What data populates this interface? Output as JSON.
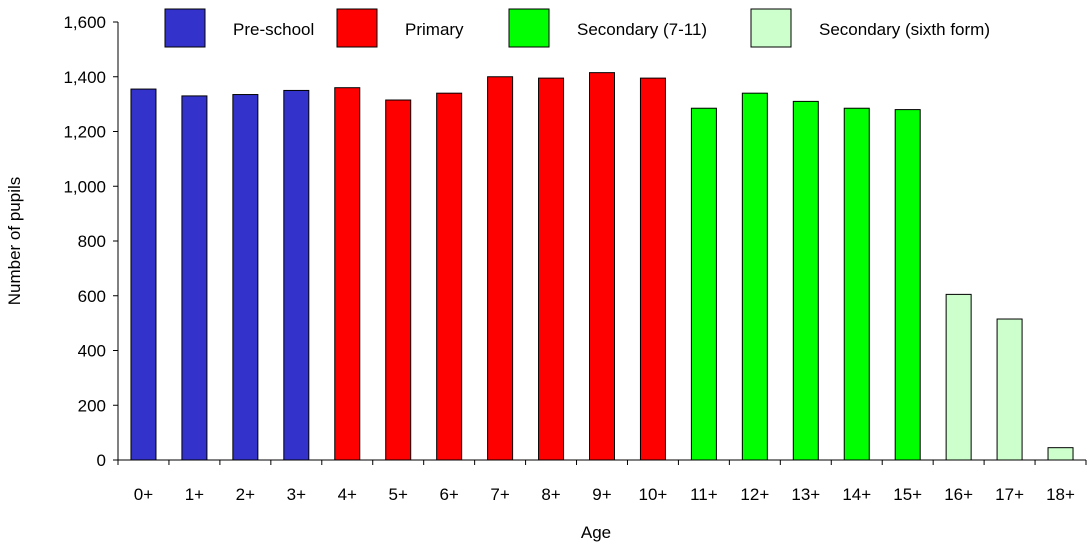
{
  "chart_data": {
    "type": "bar",
    "title": "",
    "xlabel": "Age",
    "ylabel": "Number of pupils",
    "ylim": [
      0,
      1600
    ],
    "yticks": [
      0,
      200,
      400,
      600,
      800,
      1000,
      1200,
      1400,
      1600
    ],
    "ytick_labels": [
      "0",
      "200",
      "400",
      "600",
      "800",
      "1,000",
      "1,200",
      "1,400",
      "1,600"
    ],
    "grid": false,
    "legend_position": "top",
    "categories": [
      "0+",
      "1+",
      "2+",
      "3+",
      "4+",
      "5+",
      "6+",
      "7+",
      "8+",
      "9+",
      "10+",
      "11+",
      "12+",
      "13+",
      "14+",
      "15+",
      "16+",
      "17+",
      "18+"
    ],
    "values": [
      1355,
      1330,
      1335,
      1350,
      1360,
      1315,
      1340,
      1400,
      1395,
      1415,
      1395,
      1285,
      1340,
      1310,
      1285,
      1280,
      605,
      515,
      45
    ],
    "bar_groups": [
      "Pre-school",
      "Pre-school",
      "Pre-school",
      "Pre-school",
      "Primary",
      "Primary",
      "Primary",
      "Primary",
      "Primary",
      "Primary",
      "Primary",
      "Secondary (7-11)",
      "Secondary (7-11)",
      "Secondary (7-11)",
      "Secondary (7-11)",
      "Secondary (7-11)",
      "Secondary (sixth form)",
      "Secondary (sixth form)",
      "Secondary (sixth form)"
    ],
    "legend": [
      {
        "name": "Pre-school",
        "color": "#3333cc"
      },
      {
        "name": "Primary",
        "color": "#ff0000"
      },
      {
        "name": "Secondary (7-11)",
        "color": "#00ff00"
      },
      {
        "name": "Secondary (sixth form)",
        "color": "#ccffcc"
      }
    ]
  }
}
